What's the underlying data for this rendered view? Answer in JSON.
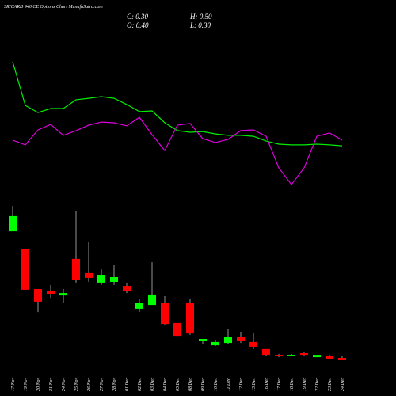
{
  "chart_data": {
    "type": "candlestick",
    "title": "SRICARD 940 CE Options Chart MunafaSutra.com",
    "info": [
      "C: 0.30",
      "H: 0.50",
      "O: 0.40",
      "L: 0.30"
    ],
    "categories": [
      "17 Nov",
      "19 Nov",
      "20 Nov",
      "21 Nov",
      "24 Nov",
      "25 Nov",
      "26 Nov",
      "27 Nov",
      "28 Nov",
      "01 Dec",
      "02 Dec",
      "03 Dec",
      "04 Dec",
      "05 Dec",
      "08 Dec",
      "09 Dec",
      "10 Dec",
      "11 Dec",
      "12 Dec",
      "15 Dec",
      "16 Dec",
      "17 Dec",
      "18 Dec",
      "19 Dec",
      "22 Dec",
      "23 Dec",
      "24 Dec"
    ],
    "open": [
      5.73,
      5.0,
      3.3,
      3.2,
      3.03,
      4.57,
      3.97,
      3.57,
      3.6,
      3.43,
      2.47,
      2.63,
      2.7,
      1.87,
      2.73,
      1.13,
      0.93,
      1.03,
      1.27,
      1.07,
      0.77,
      0.53,
      0.5,
      0.6,
      0.43,
      0.5,
      0.4
    ],
    "high": [
      6.8,
      5.0,
      3.3,
      3.47,
      3.3,
      6.57,
      5.3,
      4.13,
      4.3,
      3.57,
      2.87,
      4.43,
      3.0,
      1.87,
      2.87,
      1.2,
      1.17,
      1.6,
      1.5,
      1.47,
      0.77,
      0.57,
      0.57,
      0.63,
      0.53,
      0.53,
      0.5
    ],
    "low": [
      5.73,
      3.27,
      2.33,
      2.93,
      2.73,
      3.57,
      3.6,
      3.47,
      3.47,
      3.13,
      2.33,
      2.63,
      1.8,
      1.33,
      1.37,
      1.0,
      0.9,
      1.0,
      1.03,
      0.77,
      0.5,
      0.43,
      0.47,
      0.5,
      0.43,
      0.37,
      0.3
    ],
    "close": [
      6.37,
      3.27,
      2.77,
      3.1,
      3.13,
      3.7,
      3.77,
      3.9,
      3.8,
      3.23,
      2.7,
      3.07,
      1.83,
      1.33,
      1.43,
      1.2,
      1.07,
      1.27,
      1.13,
      0.87,
      0.53,
      0.47,
      0.53,
      0.53,
      0.53,
      0.37,
      0.3
    ],
    "up_color": "#00ff00",
    "down_color": "#ff0000",
    "wick_color": "#bbbbbb",
    "series": [
      {
        "color": "#00ee00",
        "values": [
          12.87,
          11.03,
          10.73,
          10.9,
          10.9,
          11.27,
          11.33,
          11.4,
          11.33,
          11.07,
          10.77,
          10.8,
          10.3,
          9.97,
          9.9,
          9.93,
          9.83,
          9.77,
          9.77,
          9.73,
          9.53,
          9.4,
          9.37,
          9.37,
          9.4,
          9.37,
          9.33
        ]
      },
      {
        "color": "#dd00dd",
        "values": [
          9.57,
          9.37,
          10.0,
          10.23,
          9.77,
          9.97,
          10.2,
          10.33,
          10.3,
          10.17,
          10.53,
          9.8,
          9.13,
          10.2,
          10.27,
          9.63,
          9.47,
          9.6,
          9.97,
          10.0,
          9.73,
          8.4,
          7.7,
          8.4,
          9.73,
          9.87,
          9.57
        ]
      }
    ],
    "ylim": [
      0,
      15
    ]
  }
}
